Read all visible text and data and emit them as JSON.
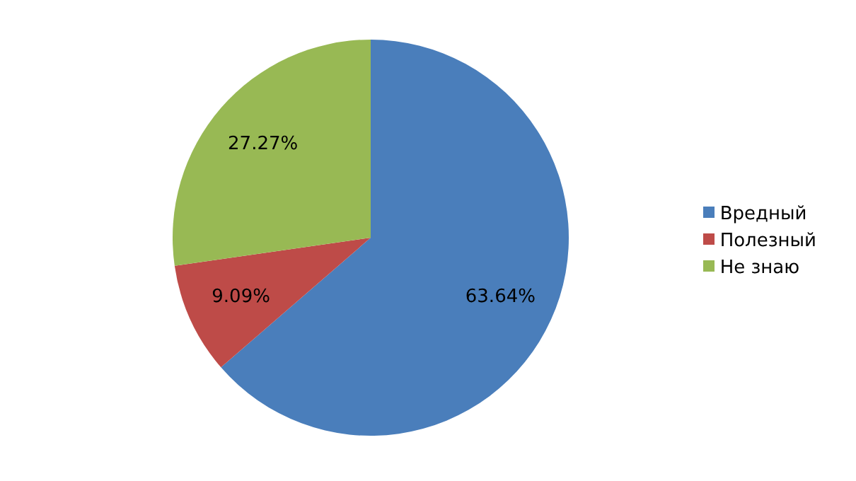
{
  "chart_data": {
    "type": "pie",
    "categories": [
      "Вредный",
      "Полезный",
      "Не знаю"
    ],
    "values": [
      63.64,
      9.09,
      27.27
    ],
    "colors": [
      "#4a7ebb",
      "#be4b48",
      "#98b954"
    ],
    "value_labels": [
      "63.64%",
      "9.09%",
      "27.27%"
    ],
    "legend": "right"
  }
}
